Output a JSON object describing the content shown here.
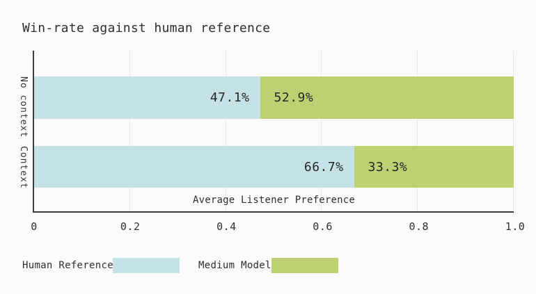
{
  "chart_data": {
    "type": "bar",
    "orientation": "horizontal",
    "stacked": true,
    "title": "Win-rate against human reference",
    "xlabel": "Average Listener Preference",
    "categories": [
      "No context",
      "Context"
    ],
    "series": [
      {
        "name": "Human Reference",
        "color": "#c4e2e6",
        "values": [
          47.1,
          66.7
        ],
        "labels": [
          "47.1%",
          "66.7%"
        ]
      },
      {
        "name": "Medium Model",
        "color": "#bdd173",
        "values": [
          52.9,
          33.3
        ],
        "labels": [
          "52.9%",
          "33.3%"
        ]
      }
    ],
    "x_ticks": [
      {
        "value": 0,
        "label": "0"
      },
      {
        "value": 0.2,
        "label": "0.2"
      },
      {
        "value": 0.4,
        "label": "0.4"
      },
      {
        "value": 0.6,
        "label": "0.6"
      },
      {
        "value": 0.8,
        "label": "0.8"
      },
      {
        "value": 1.0,
        "label": "1.0"
      }
    ],
    "xlim": [
      0,
      1.0
    ],
    "grid": true,
    "grid_color": "#e9e9e9",
    "axis_color": "#3a3a3a",
    "background_color": "#fbfbfb",
    "legend_position": "bottom-left"
  }
}
